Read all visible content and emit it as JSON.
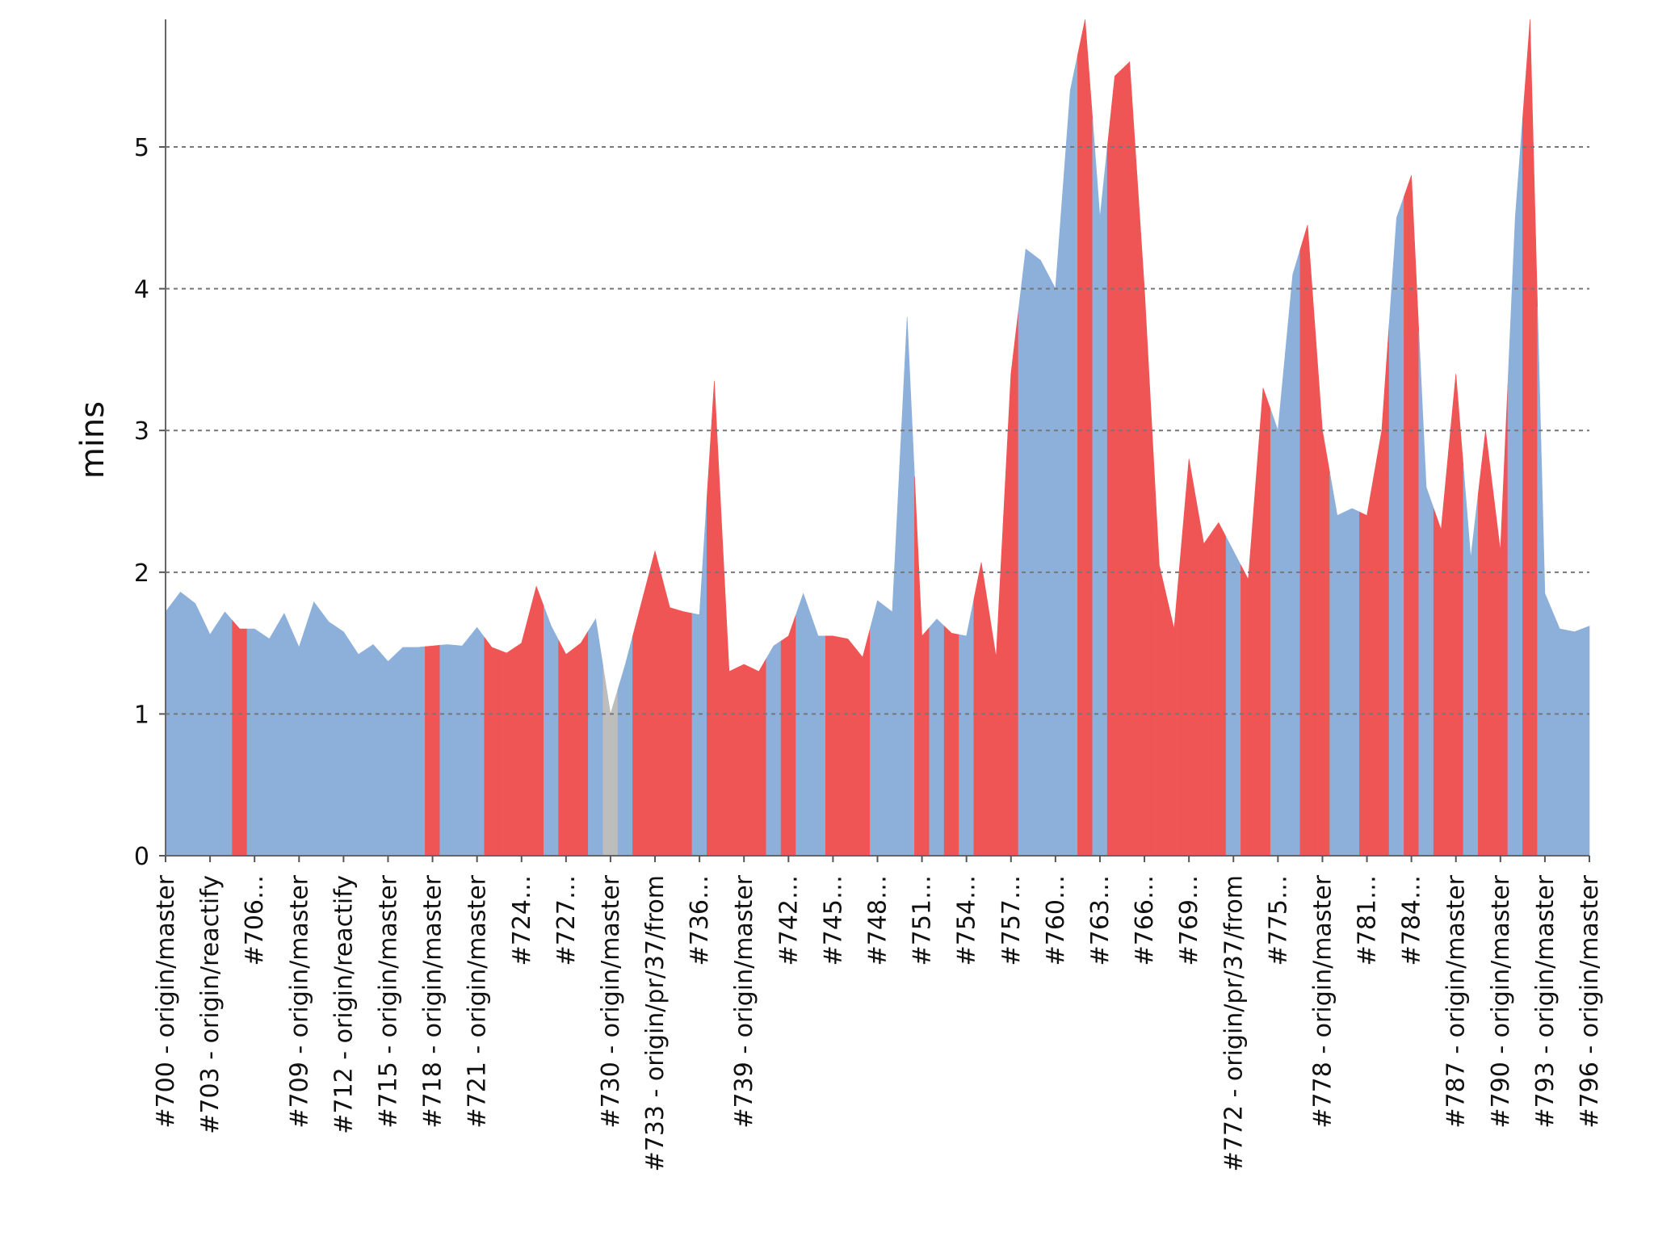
{
  "chart_data": {
    "type": "area",
    "ylabel": "mins",
    "categories": [
      "#700 - origin/master",
      null,
      null,
      "#703 - origin/reactify",
      null,
      null,
      "#706…",
      null,
      null,
      "#709 - origin/master",
      null,
      null,
      "#712 - origin/reactify",
      null,
      null,
      "#715 - origin/master",
      null,
      null,
      "#718 - origin/master",
      null,
      null,
      "#721 - origin/master",
      null,
      null,
      "#724…",
      null,
      null,
      "#727…",
      null,
      null,
      "#730 - origin/master",
      null,
      null,
      "#733 - origin/pr/37/from",
      null,
      null,
      "#736…",
      null,
      null,
      "#739 - origin/master",
      null,
      null,
      "#742…",
      null,
      null,
      "#745…",
      null,
      null,
      "#748…",
      null,
      null,
      "#751…",
      null,
      null,
      "#754…",
      null,
      null,
      "#757…",
      null,
      null,
      "#760…",
      null,
      null,
      "#763…",
      null,
      null,
      "#766…",
      null,
      null,
      "#769…",
      null,
      null,
      "#772 - origin/pr/37/from",
      null,
      null,
      "#775…",
      null,
      null,
      "#778 - origin/master",
      null,
      null,
      "#781…",
      null,
      null,
      "#784…",
      null,
      null,
      "#787 - origin/master",
      null,
      null,
      "#790 - origin/master",
      null,
      null,
      "#793 - origin/master",
      null,
      null,
      "#796 - origin/master"
    ],
    "values": [
      1.72,
      1.86,
      1.78,
      1.56,
      1.72,
      1.6,
      1.6,
      1.53,
      1.71,
      1.47,
      1.79,
      1.65,
      1.58,
      1.42,
      1.49,
      1.37,
      1.47,
      1.47,
      1.48,
      1.49,
      1.48,
      1.61,
      1.47,
      1.43,
      1.5,
      1.9,
      1.62,
      1.42,
      1.5,
      1.67,
      1.0,
      1.35,
      1.75,
      2.15,
      1.75,
      1.72,
      1.7,
      3.35,
      1.3,
      1.35,
      1.3,
      1.48,
      1.55,
      1.85,
      1.55,
      1.55,
      1.53,
      1.4,
      1.8,
      1.72,
      3.8,
      1.55,
      1.67,
      1.57,
      1.55,
      2.07,
      1.4,
      3.4,
      4.28,
      4.2,
      4.0,
      5.4,
      5.9,
      4.5,
      5.5,
      5.6,
      4.0,
      2.05,
      1.6,
      2.8,
      2.2,
      2.35,
      2.15,
      1.95,
      3.3,
      3.0,
      4.1,
      4.45,
      3.0,
      2.4,
      2.45,
      2.4,
      3.0,
      4.5,
      4.8,
      2.6,
      2.3,
      3.4,
      2.1,
      3.0,
      2.15,
      4.5,
      5.9,
      1.85,
      1.6,
      1.58,
      1.62
    ],
    "colors": [
      "#8cb0da",
      "#8cb0da",
      "#8cb0da",
      "#8cb0da",
      "#8cb0da",
      "#ef5555",
      "#8cb0da",
      "#8cb0da",
      "#8cb0da",
      "#8cb0da",
      "#8cb0da",
      "#8cb0da",
      "#8cb0da",
      "#8cb0da",
      "#8cb0da",
      "#8cb0da",
      "#8cb0da",
      "#8cb0da",
      "#ef5555",
      "#8cb0da",
      "#8cb0da",
      "#8cb0da",
      "#ef5555",
      "#ef5555",
      "#ef5555",
      "#ef5555",
      "#8cb0da",
      "#ef5555",
      "#ef5555",
      "#8cb0da",
      "#bdbdbd",
      "#8cb0da",
      "#ef5555",
      "#ef5555",
      "#ef5555",
      "#ef5555",
      "#8cb0da",
      "#ef5555",
      "#ef5555",
      "#ef5555",
      "#ef5555",
      "#8cb0da",
      "#ef5555",
      "#8cb0da",
      "#8cb0da",
      "#ef5555",
      "#ef5555",
      "#ef5555",
      "#8cb0da",
      "#8cb0da",
      "#8cb0da",
      "#ef5555",
      "#8cb0da",
      "#ef5555",
      "#8cb0da",
      "#ef5555",
      "#ef5555",
      "#ef5555",
      "#8cb0da",
      "#8cb0da",
      "#8cb0da",
      "#8cb0da",
      "#ef5555",
      "#8cb0da",
      "#ef5555",
      "#ef5555",
      "#ef5555",
      "#ef5555",
      "#ef5555",
      "#ef5555",
      "#ef5555",
      "#ef5555",
      "#8cb0da",
      "#ef5555",
      "#ef5555",
      "#8cb0da",
      "#8cb0da",
      "#ef5555",
      "#ef5555",
      "#8cb0da",
      "#8cb0da",
      "#ef5555",
      "#ef5555",
      "#8cb0da",
      "#ef5555",
      "#8cb0da",
      "#ef5555",
      "#ef5555",
      "#8cb0da",
      "#ef5555",
      "#ef5555",
      "#8cb0da",
      "#ef5555",
      "#8cb0da",
      "#8cb0da",
      "#8cb0da",
      "#8cb0da"
    ],
    "ylim": [
      0,
      5.9
    ],
    "yticks": [
      0,
      1,
      2,
      3,
      4,
      5
    ],
    "grid": true
  }
}
